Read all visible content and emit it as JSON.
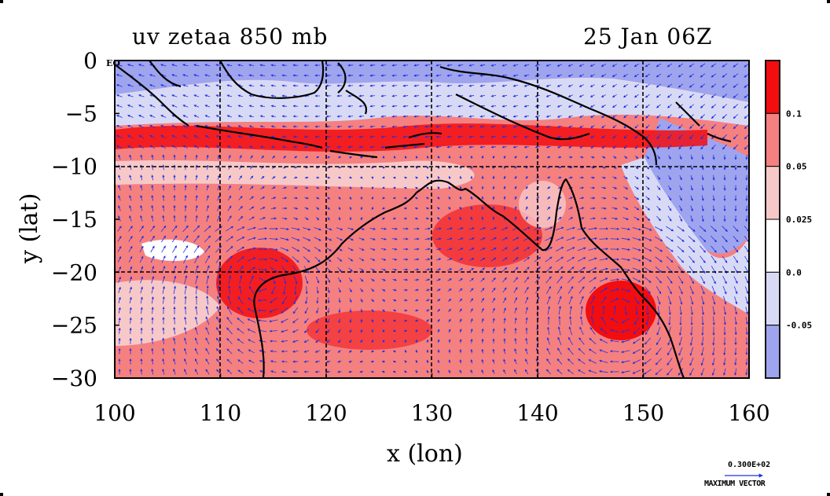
{
  "header": {
    "variable_title": "uv zetaa 850 mb",
    "time_title": "25 Jan 06Z"
  },
  "map": {
    "xlabel": "x (lon)",
    "ylabel": "y (lat)",
    "corner_label": "EQ",
    "lon_ticks": [
      "100",
      "110",
      "120",
      "130",
      "140",
      "150",
      "160"
    ],
    "lat_ticks": [
      "0",
      "−5",
      "−10",
      "−15",
      "−20",
      "−25",
      "−30"
    ],
    "lon_range": [
      100,
      160
    ],
    "lat_range": [
      -30,
      0
    ],
    "grid": "dashed every 10 degrees"
  },
  "colorbar": {
    "labels": [
      "0.1",
      "0.05",
      "0.025",
      "0.0",
      "-0.05"
    ],
    "colors": [
      "#f20d10",
      "#f58080",
      "#f7c8c8",
      "#ffffff",
      "#d8daf5",
      "#9fa4ee"
    ]
  },
  "vector_key": {
    "value": "0.300E+02",
    "caption": "MAXIMUM VECTOR",
    "color": "#2030e0"
  },
  "colors": {
    "coast": "#000000",
    "vector": "#2030e0"
  }
}
